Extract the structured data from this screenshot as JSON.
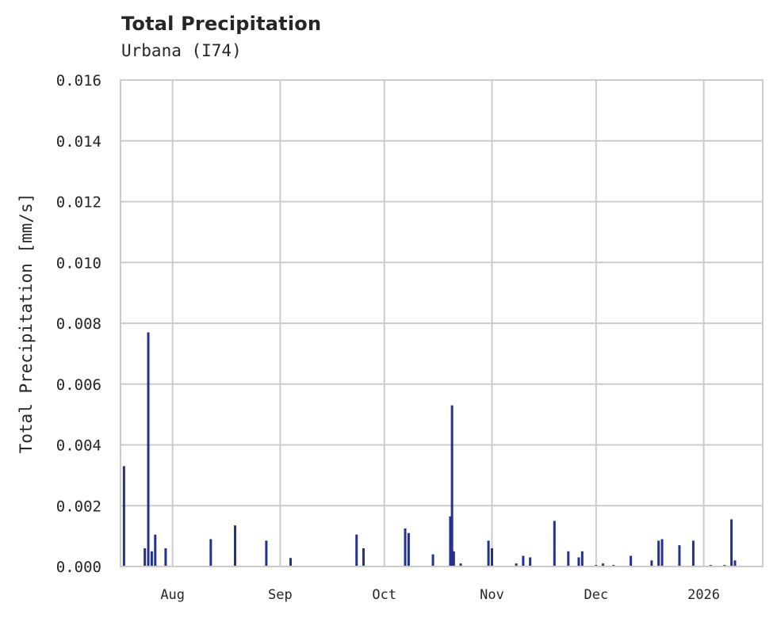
{
  "header": {
    "title": "Total Precipitation",
    "subtitle": "Urbana (I74)"
  },
  "colors": {
    "bar": "#24318f",
    "grid": "#cccccc",
    "text": "#262626"
  },
  "chart_data": {
    "type": "bar",
    "title": "Total Precipitation",
    "subtitle": "Urbana (I74)",
    "xlabel": "",
    "ylabel": "Total Precipitation [mm/s]",
    "ylim": [
      0,
      0.016
    ],
    "yticks": [
      "0.000",
      "0.002",
      "0.004",
      "0.006",
      "0.008",
      "0.010",
      "0.012",
      "0.014",
      "0.016"
    ],
    "xticks": [
      "Aug",
      "Sep",
      "Oct",
      "Nov",
      "Dec",
      "2026"
    ],
    "xrange": [
      "2025-07-17",
      "2026-01-18"
    ],
    "grid": true,
    "legend": null,
    "series": [
      {
        "name": "Total Precipitation",
        "points": [
          {
            "date": "2025-07-18",
            "value": 0.0033
          },
          {
            "date": "2025-07-24",
            "value": 0.0006
          },
          {
            "date": "2025-07-25",
            "value": 0.0077
          },
          {
            "date": "2025-07-26",
            "value": 0.0005
          },
          {
            "date": "2025-07-27",
            "value": 0.00105
          },
          {
            "date": "2025-07-30",
            "value": 0.0006
          },
          {
            "date": "2025-08-12",
            "value": 0.0009
          },
          {
            "date": "2025-08-19",
            "value": 0.00135
          },
          {
            "date": "2025-08-28",
            "value": 0.00085
          },
          {
            "date": "2025-09-04",
            "value": 0.00028
          },
          {
            "date": "2025-09-23",
            "value": 0.00105
          },
          {
            "date": "2025-09-25",
            "value": 0.0006
          },
          {
            "date": "2025-10-07",
            "value": 0.00125
          },
          {
            "date": "2025-10-08",
            "value": 0.0011
          },
          {
            "date": "2025-10-15",
            "value": 0.0004
          },
          {
            "date": "2025-10-20",
            "value": 0.00165
          },
          {
            "date": "2025-10-20T12",
            "value": 0.0053
          },
          {
            "date": "2025-10-21",
            "value": 0.0005
          },
          {
            "date": "2025-10-23",
            "value": 0.0001
          },
          {
            "date": "2025-10-31",
            "value": 0.00085
          },
          {
            "date": "2025-11-01",
            "value": 0.0006
          },
          {
            "date": "2025-11-08",
            "value": 0.0001
          },
          {
            "date": "2025-11-10",
            "value": 0.00035
          },
          {
            "date": "2025-11-12",
            "value": 0.0003
          },
          {
            "date": "2025-11-19",
            "value": 0.0015
          },
          {
            "date": "2025-11-23",
            "value": 0.0005
          },
          {
            "date": "2025-11-26",
            "value": 0.0003
          },
          {
            "date": "2025-11-27",
            "value": 0.0005
          },
          {
            "date": "2025-12-01",
            "value": 5e-05
          },
          {
            "date": "2025-12-03",
            "value": 0.0001
          },
          {
            "date": "2025-12-06",
            "value": 5e-05
          },
          {
            "date": "2025-12-11",
            "value": 0.00035
          },
          {
            "date": "2025-12-17",
            "value": 0.0002
          },
          {
            "date": "2025-12-19",
            "value": 0.00085
          },
          {
            "date": "2025-12-20",
            "value": 0.0009
          },
          {
            "date": "2025-12-25",
            "value": 0.0007
          },
          {
            "date": "2025-12-29",
            "value": 0.00085
          },
          {
            "date": "2026-01-03",
            "value": 5e-05
          },
          {
            "date": "2026-01-07",
            "value": 5e-05
          },
          {
            "date": "2026-01-09",
            "value": 0.00155
          },
          {
            "date": "2026-01-10",
            "value": 0.0002
          }
        ]
      }
    ]
  }
}
